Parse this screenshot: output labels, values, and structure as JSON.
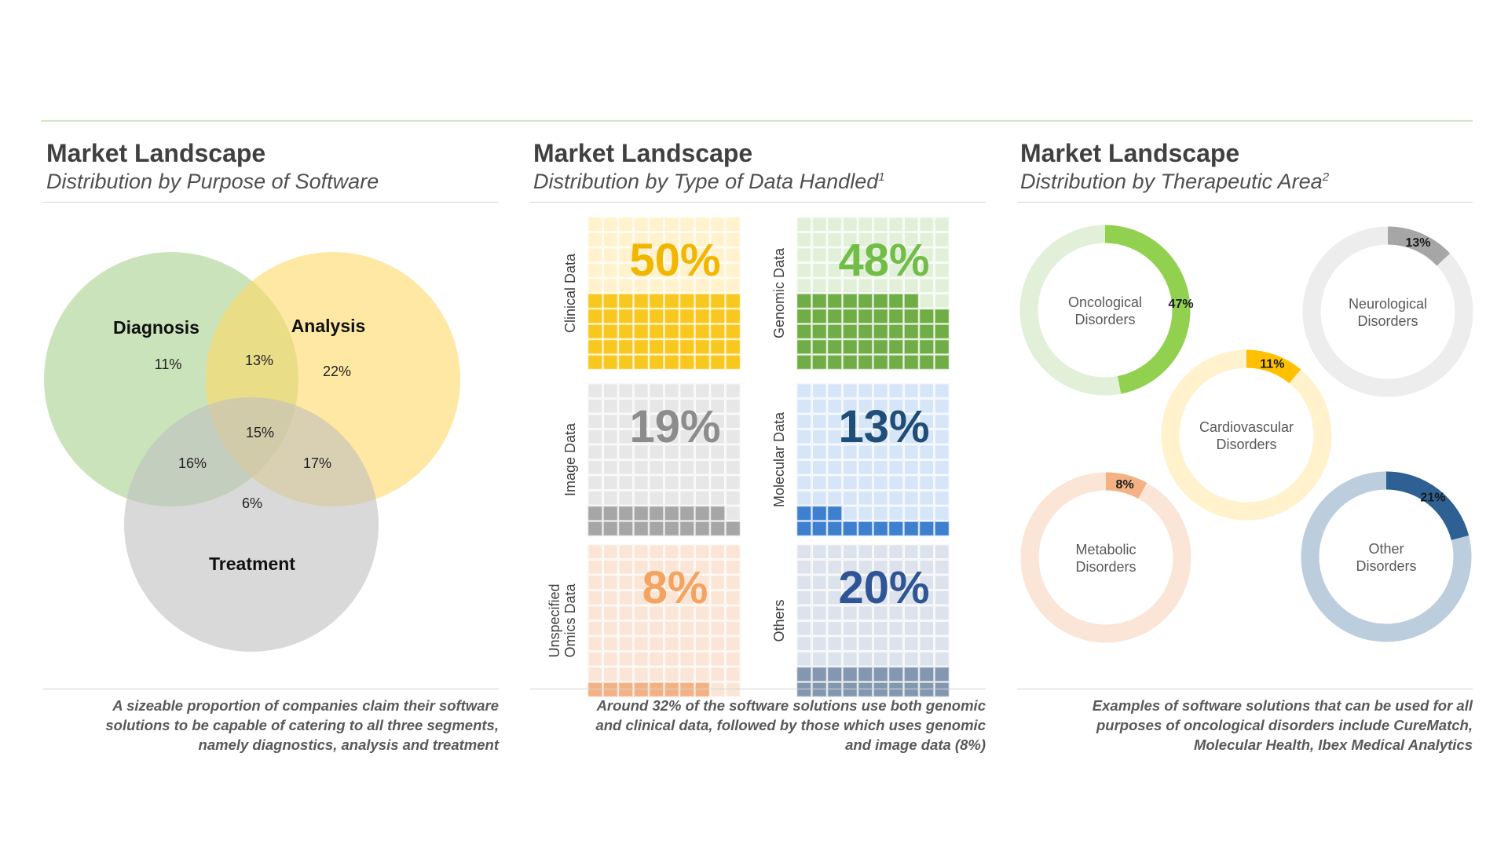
{
  "panels": [
    {
      "title": "Market Landscape",
      "subtitle": "Distribution by Purpose of Software",
      "subtitle_sup": "",
      "note_lines": [
        "A sizeable proportion of companies claim their software",
        "solutions to be capable of catering to all three segments,",
        "namely diagnostics, analysis and treatment"
      ]
    },
    {
      "title": "Market Landscape",
      "subtitle": "Distribution by Type of Data Handled",
      "subtitle_sup": "1",
      "note_lines": [
        "Around 32% of the software solutions use both genomic",
        "and clinical data, followed by those which uses genomic",
        "and image data (8%)"
      ]
    },
    {
      "title": "Market Landscape",
      "subtitle": "Distribution by Therapeutic Area",
      "subtitle_sup": "2",
      "note_lines": [
        "Examples of software solutions that can be used for all",
        "purposes of oncological disorders include CureMatch,",
        "Molecular Health, Ibex Medical Analytics"
      ]
    }
  ],
  "chart_data": [
    {
      "type": "venn",
      "sets": [
        {
          "name": "Diagnosis",
          "color": "#a9d18e"
        },
        {
          "name": "Analysis",
          "color": "#ffd966"
        },
        {
          "name": "Treatment",
          "color": "#bfbfbf"
        }
      ],
      "regions": [
        {
          "sets": [
            "Diagnosis"
          ],
          "value": "11%"
        },
        {
          "sets": [
            "Analysis"
          ],
          "value": "22%"
        },
        {
          "sets": [
            "Treatment"
          ],
          "value": "6%"
        },
        {
          "sets": [
            "Diagnosis",
            "Analysis"
          ],
          "value": "13%"
        },
        {
          "sets": [
            "Diagnosis",
            "Treatment"
          ],
          "value": "16%"
        },
        {
          "sets": [
            "Analysis",
            "Treatment"
          ],
          "value": "17%"
        },
        {
          "sets": [
            "Diagnosis",
            "Analysis",
            "Treatment"
          ],
          "value": "15%"
        }
      ]
    },
    {
      "type": "waffle",
      "grid": {
        "rows": 10,
        "cols": 10
      },
      "items": [
        {
          "label": "Clinical Data",
          "value": 50,
          "display": "50%",
          "fill": "#f9c81e",
          "empty": "#fff2cc",
          "text_color": "#f2b600"
        },
        {
          "label": "Genomic Data",
          "value": 48,
          "display": "48%",
          "fill": "#70ad47",
          "empty": "#e2f0d9",
          "text_color": "#72bd47"
        },
        {
          "label": "Image Data",
          "value": 19,
          "display": "19%",
          "fill": "#a6a6a6",
          "empty": "#e7e7e7",
          "text_color": "#8c8c8c"
        },
        {
          "label": "Molecular Data",
          "value": 13,
          "display": "13%",
          "fill": "#3e7fd0",
          "empty": "#d6e5f7",
          "text_color": "#1f4e79"
        },
        {
          "label": "Unspecified Omics Data",
          "label_lines": [
            "Unspecified",
            "Omics Data"
          ],
          "value": 8,
          "display": "8%",
          "fill": "#f4b183",
          "empty": "#fbe5d6",
          "text_color": "#f4a460"
        },
        {
          "label": "Others",
          "value": 20,
          "display": "20%",
          "fill": "#8497b0",
          "empty": "#dde3ec",
          "text_color": "#2f5597"
        }
      ]
    },
    {
      "type": "donut",
      "items": [
        {
          "label_lines": [
            "Oncological",
            "Disorders"
          ],
          "value": 47,
          "display": "47%",
          "fill": "#92d050",
          "ring": "#e2efd9"
        },
        {
          "label_lines": [
            "Neurological",
            "Disorders"
          ],
          "value": 13,
          "display": "13%",
          "fill": "#a6a6a6",
          "ring": "#ededed"
        },
        {
          "label_lines": [
            "Cardiovascular",
            "Disorders"
          ],
          "value": 11,
          "display": "11%",
          "fill": "#ffc000",
          "ring": "#fff2cc"
        },
        {
          "label_lines": [
            "Metabolic",
            "Disorders"
          ],
          "value": 8,
          "display": "8%",
          "fill": "#f4b183",
          "ring": "#fbe5d6"
        },
        {
          "label_lines": [
            "Other",
            "Disorders"
          ],
          "value": 21,
          "display": "21%",
          "fill": "#2e6093",
          "ring": "#bccddd"
        }
      ]
    }
  ]
}
